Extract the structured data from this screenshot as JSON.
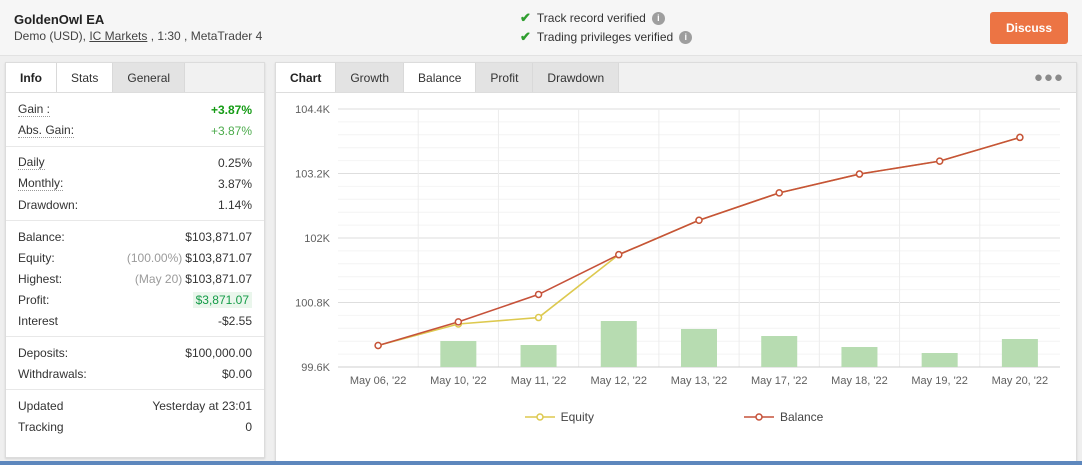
{
  "header": {
    "title": "GoldenOwl EA",
    "subtitle_prefix": "Demo (USD), ",
    "broker_link": "IC Markets",
    "subtitle_suffix": " , 1:30 , MetaTrader 4",
    "verifications": [
      {
        "label": "Track record verified"
      },
      {
        "label": "Trading privileges verified"
      }
    ],
    "discuss_label": "Discuss"
  },
  "left_panel": {
    "tabs": [
      {
        "label": "Info"
      },
      {
        "label": "Stats"
      },
      {
        "label": "General"
      }
    ],
    "active_tab": "Stats",
    "groups": [
      {
        "rows": [
          {
            "label": "Gain :",
            "value": "+3.87%"
          },
          {
            "label": "Abs. Gain:",
            "value": "+3.87%"
          }
        ]
      },
      {
        "rows": [
          {
            "label": "Daily",
            "value": "0.25%"
          },
          {
            "label": "Monthly:",
            "value": "3.87%"
          },
          {
            "label": "Drawdown:",
            "value": "1.14%"
          }
        ]
      },
      {
        "rows": [
          {
            "label": "Balance:",
            "value": "$103,871.07"
          },
          {
            "label": "Equity:",
            "prefix": "(100.00%)",
            "value": "$103,871.07"
          },
          {
            "label": "Highest:",
            "prefix": "(May 20)",
            "value": "$103,871.07"
          },
          {
            "label": "Profit:",
            "value": "$3,871.07"
          },
          {
            "label": "Interest",
            "value": "-$2.55"
          }
        ]
      },
      {
        "rows": [
          {
            "label": "Deposits:",
            "value": "$100,000.00"
          },
          {
            "label": "Withdrawals:",
            "value": "$0.00"
          }
        ]
      },
      {
        "rows": [
          {
            "label": "Updated",
            "value": "Yesterday at 23:01"
          },
          {
            "label": "Tracking",
            "value": "0"
          }
        ]
      }
    ]
  },
  "chart_panel": {
    "title_tab": "Chart",
    "tabs": [
      {
        "label": "Growth"
      },
      {
        "label": "Balance"
      },
      {
        "label": "Profit"
      },
      {
        "label": "Drawdown"
      }
    ],
    "active_tab": "Balance",
    "menu_icon": "ellipsis-menu",
    "legend": [
      {
        "name": "Equity",
        "color": "#ddc94f"
      },
      {
        "name": "Balance",
        "color": "#c6523a"
      }
    ]
  },
  "chart_data": {
    "type": "line",
    "title": "",
    "xlabel": "",
    "ylabel": "",
    "categories": [
      "May 06, '22",
      "May 10, '22",
      "May 11, '22",
      "May 12, '22",
      "May 13, '22",
      "May 17, '22",
      "May 18, '22",
      "May 19, '22",
      "May 20, '22"
    ],
    "series": [
      {
        "name": "Equity",
        "color": "#ddc94f",
        "values": [
          100000,
          100400,
          100520,
          101690,
          102330,
          102840,
          103190,
          103430,
          103871
        ]
      },
      {
        "name": "Balance",
        "color": "#c6523a",
        "values": [
          100000,
          100440,
          100950,
          101690,
          102330,
          102840,
          103190,
          103430,
          103871
        ]
      }
    ],
    "bars": {
      "name": "daily-activity-bars",
      "color": "#b7dcb1",
      "axis": "secondary-unlabeled",
      "relative_values": [
        0,
        26,
        22,
        46,
        38,
        31,
        20,
        14,
        28
      ]
    },
    "ylim": [
      99600,
      104400
    ],
    "yticks": [
      {
        "value": 99600,
        "label": "99.6K"
      },
      {
        "value": 100800,
        "label": "100.8K"
      },
      {
        "value": 102000,
        "label": "102K"
      },
      {
        "value": 103200,
        "label": "103.2K"
      },
      {
        "value": 104400,
        "label": "104.4K"
      }
    ],
    "minor_step": 240,
    "major_step": 1200,
    "grid": true,
    "legend_position": "bottom"
  },
  "colors": {
    "accent_orange": "#ec7444",
    "verified_green": "#2f9e2f",
    "gain_green": "#149b14",
    "bar_green": "#b7dcb1",
    "balance_line": "#c6523a",
    "equity_line": "#ddc94f"
  }
}
